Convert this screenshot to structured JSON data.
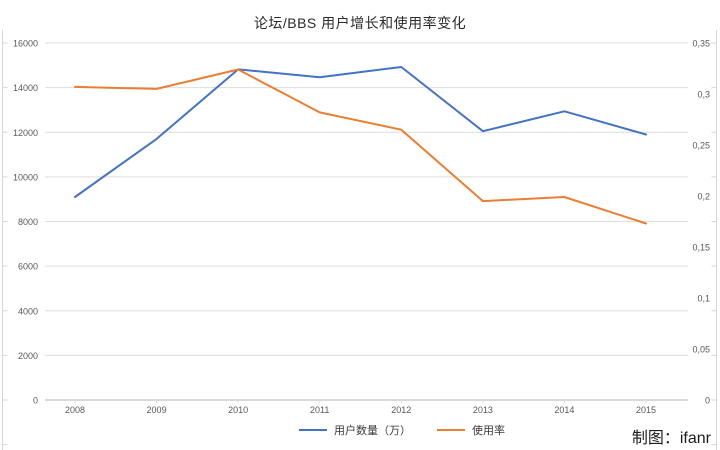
{
  "title": "论坛/BBS 用户增长和使用率变化",
  "credit": "制图：ifanr",
  "colors": {
    "users_line": "#4472C4",
    "rate_line": "#ED7D31",
    "gridline": "#dedede",
    "baseline": "#b3b3b3",
    "axis_frame": "#d6d6d6",
    "axis_label": "#595959"
  },
  "chart_data": {
    "type": "line",
    "title": "论坛/BBS 用户增长和使用率变化",
    "categories": [
      "2008",
      "2009",
      "2010",
      "2011",
      "2012",
      "2013",
      "2014",
      "2015"
    ],
    "series": [
      {
        "name": "用户数量（万）",
        "axis": "left",
        "color": "#4472C4",
        "values": [
          9100,
          11701,
          14817,
          14469,
          14925,
          12046,
          12938,
          11901
        ]
      },
      {
        "name": "使用率",
        "axis": "right",
        "color": "#ED7D31",
        "values": [
          0.307,
          0.305,
          0.324,
          0.282,
          0.265,
          0.195,
          0.199,
          0.173
        ]
      }
    ],
    "left_axis": {
      "min": 0,
      "max": 16000,
      "ticks": [
        "0",
        "2000",
        "4000",
        "6000",
        "8000",
        "10000",
        "12000",
        "14000",
        "16000"
      ]
    },
    "right_axis": {
      "min": 0,
      "max": 0.35,
      "ticks": [
        "0",
        "0,05",
        "0,1",
        "0,15",
        "0,2",
        "0,25",
        "0,3",
        "0,35"
      ]
    },
    "grid": true,
    "legend_position": "bottom",
    "markers": false
  }
}
